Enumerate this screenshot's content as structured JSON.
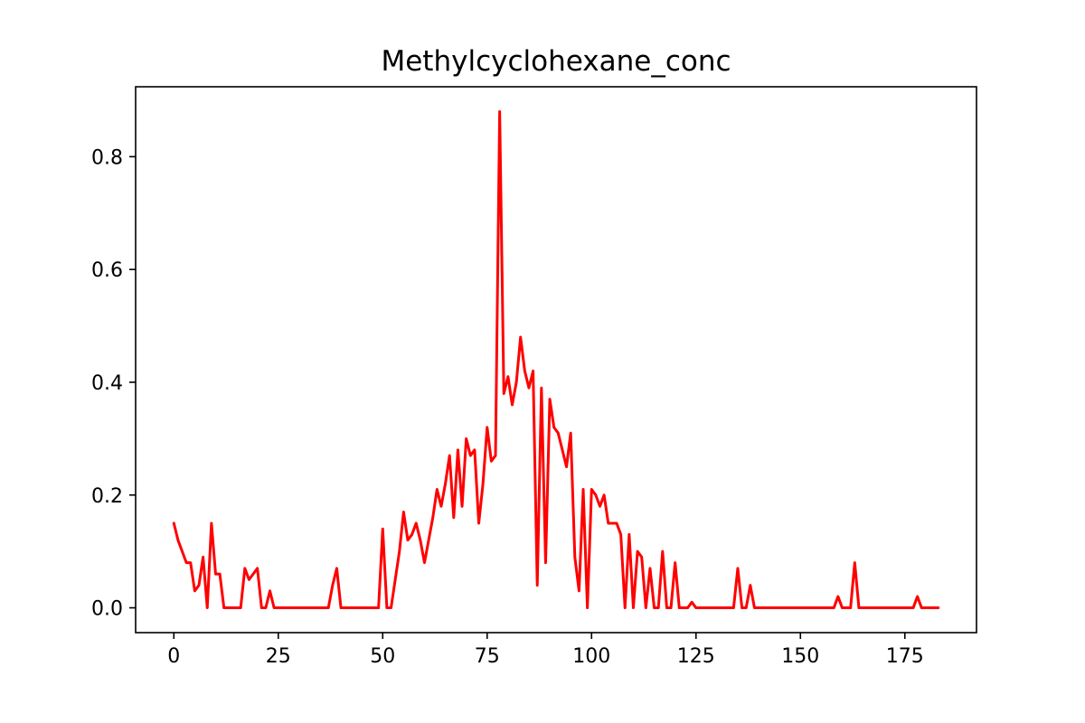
{
  "chart_data": {
    "type": "line",
    "title": "Methylcyclohexane_conc",
    "xlabel": "",
    "ylabel": "",
    "xlim": [
      -9.15,
      192.15
    ],
    "ylim": [
      -0.044,
      0.924
    ],
    "xticks": [
      0,
      25,
      50,
      75,
      100,
      125,
      150,
      175
    ],
    "yticks": [
      0.0,
      0.2,
      0.4,
      0.6,
      0.8
    ],
    "xtick_labels": [
      "0",
      "25",
      "50",
      "75",
      "100",
      "125",
      "150",
      "175"
    ],
    "ytick_labels": [
      "0.0",
      "0.2",
      "0.4",
      "0.6",
      "0.8"
    ],
    "grid": false,
    "legend": "none",
    "series": [
      {
        "color": "#ff0000",
        "x": [
          0,
          1,
          2,
          3,
          4,
          5,
          6,
          7,
          8,
          9,
          10,
          11,
          12,
          13,
          14,
          15,
          16,
          17,
          18,
          19,
          20,
          21,
          22,
          23,
          24,
          25,
          26,
          27,
          28,
          29,
          30,
          31,
          32,
          33,
          34,
          35,
          36,
          37,
          38,
          39,
          40,
          41,
          42,
          43,
          44,
          45,
          46,
          47,
          48,
          49,
          50,
          51,
          52,
          53,
          54,
          55,
          56,
          57,
          58,
          59,
          60,
          61,
          62,
          63,
          64,
          65,
          66,
          67,
          68,
          69,
          70,
          71,
          72,
          73,
          74,
          75,
          76,
          77,
          78,
          79,
          80,
          81,
          82,
          83,
          84,
          85,
          86,
          87,
          88,
          89,
          90,
          91,
          92,
          93,
          94,
          95,
          96,
          97,
          98,
          99,
          100,
          101,
          102,
          103,
          104,
          105,
          106,
          107,
          108,
          109,
          110,
          111,
          112,
          113,
          114,
          115,
          116,
          117,
          118,
          119,
          120,
          121,
          122,
          123,
          124,
          125,
          126,
          127,
          128,
          129,
          130,
          131,
          132,
          133,
          134,
          135,
          136,
          137,
          138,
          139,
          140,
          141,
          142,
          143,
          144,
          145,
          146,
          147,
          148,
          149,
          150,
          151,
          152,
          153,
          154,
          155,
          156,
          157,
          158,
          159,
          160,
          161,
          162,
          163,
          164,
          165,
          166,
          167,
          168,
          169,
          170,
          171,
          172,
          173,
          174,
          175,
          176,
          177,
          178,
          179,
          180,
          181,
          182,
          183
        ],
        "y": [
          0.15,
          0.12,
          0.1,
          0.08,
          0.08,
          0.03,
          0.04,
          0.09,
          0.0,
          0.15,
          0.06,
          0.06,
          0.0,
          0.0,
          0.0,
          0.0,
          0.0,
          0.07,
          0.05,
          0.06,
          0.07,
          0.0,
          0.0,
          0.03,
          0.0,
          0.0,
          0.0,
          0.0,
          0.0,
          0.0,
          0.0,
          0.0,
          0.0,
          0.0,
          0.0,
          0.0,
          0.0,
          0.0,
          0.04,
          0.07,
          0.0,
          0.0,
          0.0,
          0.0,
          0.0,
          0.0,
          0.0,
          0.0,
          0.0,
          0.0,
          0.14,
          0.0,
          0.0,
          0.05,
          0.1,
          0.17,
          0.12,
          0.13,
          0.15,
          0.12,
          0.08,
          0.12,
          0.16,
          0.21,
          0.18,
          0.22,
          0.27,
          0.16,
          0.28,
          0.18,
          0.3,
          0.27,
          0.28,
          0.15,
          0.22,
          0.32,
          0.26,
          0.27,
          0.88,
          0.38,
          0.41,
          0.36,
          0.4,
          0.48,
          0.42,
          0.39,
          0.42,
          0.04,
          0.39,
          0.08,
          0.37,
          0.32,
          0.31,
          0.28,
          0.25,
          0.31,
          0.09,
          0.03,
          0.21,
          0.0,
          0.21,
          0.2,
          0.18,
          0.2,
          0.15,
          0.15,
          0.15,
          0.13,
          0.0,
          0.13,
          0.0,
          0.1,
          0.09,
          0.0,
          0.07,
          0.0,
          0.0,
          0.1,
          0.0,
          0.0,
          0.08,
          0.0,
          0.0,
          0.0,
          0.01,
          0.0,
          0.0,
          0.0,
          0.0,
          0.0,
          0.0,
          0.0,
          0.0,
          0.0,
          0.0,
          0.07,
          0.0,
          0.0,
          0.04,
          0.0,
          0.0,
          0.0,
          0.0,
          0.0,
          0.0,
          0.0,
          0.0,
          0.0,
          0.0,
          0.0,
          0.0,
          0.0,
          0.0,
          0.0,
          0.0,
          0.0,
          0.0,
          0.0,
          0.0,
          0.02,
          0.0,
          0.0,
          0.0,
          0.08,
          0.0,
          0.0,
          0.0,
          0.0,
          0.0,
          0.0,
          0.0,
          0.0,
          0.0,
          0.0,
          0.0,
          0.0,
          0.0,
          0.0,
          0.02,
          0.0,
          0.0,
          0.0,
          0.0,
          0.0
        ]
      }
    ]
  }
}
